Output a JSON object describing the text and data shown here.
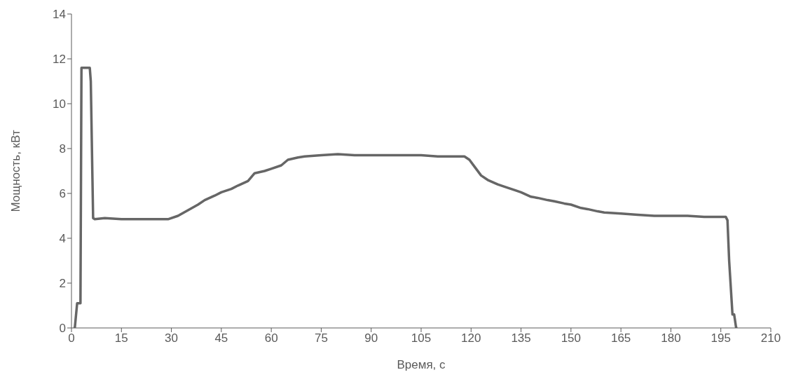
{
  "chart_data": {
    "type": "line",
    "xlabel": "Время, с",
    "ylabel": "Мощность, кВт",
    "x": [
      0.6,
      1.0,
      1.7,
      2.5,
      2.7,
      3.0,
      5.0,
      5.5,
      5.8,
      6.5,
      7,
      10,
      15,
      20,
      25,
      29,
      32,
      35,
      38,
      40,
      43,
      45,
      48,
      50,
      53,
      55,
      58,
      60,
      63,
      65,
      68,
      70,
      75,
      80,
      85,
      90,
      95,
      100,
      105,
      110,
      115,
      118,
      119.5,
      121,
      123,
      125,
      128,
      130,
      133,
      135,
      138,
      140,
      143,
      145,
      148,
      150,
      153,
      155,
      158,
      160,
      165,
      170,
      175,
      180,
      185,
      190,
      195,
      196.5,
      197,
      197.5,
      198.5,
      199,
      199.6,
      200
    ],
    "series": [
      {
        "color": "#666666",
        "values": [
          0,
          0,
          1.1,
          1.1,
          1.1,
          11.6,
          11.6,
          11.6,
          11,
          4.9,
          4.85,
          4.9,
          4.85,
          4.85,
          4.85,
          4.85,
          5.0,
          5.25,
          5.5,
          5.7,
          5.9,
          6.05,
          6.2,
          6.35,
          6.55,
          6.9,
          7.0,
          7.1,
          7.25,
          7.5,
          7.6,
          7.65,
          7.7,
          7.75,
          7.7,
          7.7,
          7.7,
          7.7,
          7.7,
          7.65,
          7.65,
          7.65,
          7.5,
          7.2,
          6.8,
          6.6,
          6.4,
          6.3,
          6.15,
          6.05,
          5.85,
          5.8,
          5.7,
          5.65,
          5.55,
          5.5,
          5.35,
          5.3,
          5.2,
          5.15,
          5.1,
          5.05,
          5.0,
          5.0,
          5.0,
          4.95,
          4.95,
          4.95,
          4.8,
          3,
          0.6,
          0.6,
          0,
          0
        ]
      }
    ],
    "xlim": [
      0,
      210
    ],
    "xticks": [
      0,
      15,
      30,
      45,
      60,
      75,
      90,
      105,
      120,
      135,
      150,
      165,
      180,
      195,
      210
    ],
    "ylim": [
      0,
      14
    ],
    "yticks": [
      0,
      2,
      4,
      6,
      8,
      10,
      12,
      14
    ],
    "grid": false,
    "legend": false,
    "marker": "none",
    "line_style": "solid"
  }
}
